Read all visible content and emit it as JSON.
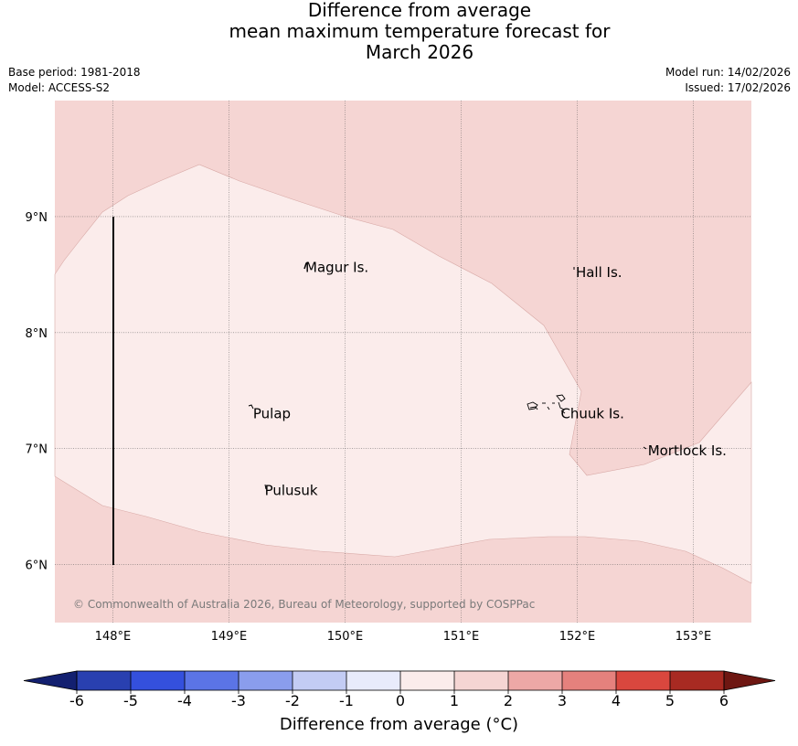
{
  "title": {
    "line1": "Difference from average",
    "line2": "mean maximum temperature forecast for",
    "line3": "March 2026"
  },
  "meta": {
    "base_period": "Base period: 1981-2018",
    "model": "Model: ACCESS-S2",
    "model_run": "Model run: 14/02/2026",
    "issued": "Issued: 17/02/2026"
  },
  "map": {
    "lon_range": [
      147.5,
      153.5
    ],
    "lat_range": [
      5.5,
      10.0
    ],
    "lon_ticks": [
      "148°E",
      "149°E",
      "150°E",
      "151°E",
      "152°E",
      "153°E"
    ],
    "lat_ticks": [
      "9°N",
      "8°N",
      "7°N",
      "6°N"
    ],
    "copyright": "© Commonwealth of Australia 2026, Bureau of Meteorology, supported by COSPPac",
    "regions": [
      {
        "class": "1 to 2",
        "color": "#f5d5d3"
      },
      {
        "class": "0 to 1",
        "color": "#fbeceb"
      }
    ],
    "places": [
      {
        "name": "Magur Is.",
        "lon": 149.65,
        "lat": 8.56
      },
      {
        "name": "Hall Is.",
        "lon": 151.98,
        "lat": 8.52
      },
      {
        "name": "Pulap",
        "lon": 149.2,
        "lat": 7.3
      },
      {
        "name": "Chuuk Is.",
        "lon": 151.85,
        "lat": 7.3
      },
      {
        "name": "Mortlock Is.",
        "lon": 152.6,
        "lat": 6.98
      },
      {
        "name": "Pulusuk",
        "lon": 149.3,
        "lat": 6.64
      }
    ]
  },
  "colorbar": {
    "label": "Difference from average (°C)",
    "ticks": [
      "-6",
      "-5",
      "-4",
      "-3",
      "-2",
      "-1",
      "0",
      "1",
      "2",
      "3",
      "4",
      "5",
      "6"
    ],
    "colors": [
      "#2940b0",
      "#3450dd",
      "#5b74e6",
      "#8a9ded",
      "#c3ccf4",
      "#e8ebfb",
      "#fbeceb",
      "#f5d5d3",
      "#eda8a6",
      "#e5817d",
      "#d9473e",
      "#a82a22"
    ],
    "under_color": "#132070",
    "over_color": "#6e1712"
  }
}
